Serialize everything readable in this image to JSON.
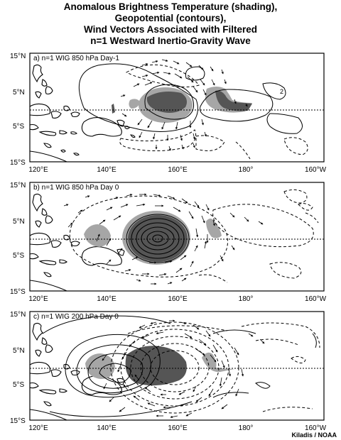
{
  "title_lines": [
    "Anomalous Brightness Temperature (shading),",
    "Geopotential (contours),",
    "Wind Vectors Associated with Filtered",
    "n=1 Westward Inertio-Gravity Wave"
  ],
  "lat_labels": [
    "15°N",
    "5°N",
    "5°S",
    "15°S"
  ],
  "lon_labels": [
    "120°E",
    "140°E",
    "160°E",
    "180°",
    "160°W"
  ],
  "panels": [
    {
      "label": "a) n=1 WIG 850 hPa Day-1",
      "contour_label": "2"
    },
    {
      "label": "b) n=1 WIG 850 hPa Day 0",
      "contour_label": ""
    },
    {
      "label": "c) n=1 WIG 200 hPa Day 0",
      "contour_label": ""
    }
  ],
  "credit": "Kiladis / NOAA",
  "colors": {
    "light_shade": "#a6a6a6",
    "dark_shade": "#555555",
    "contour": "#000000",
    "frame": "#000000"
  }
}
